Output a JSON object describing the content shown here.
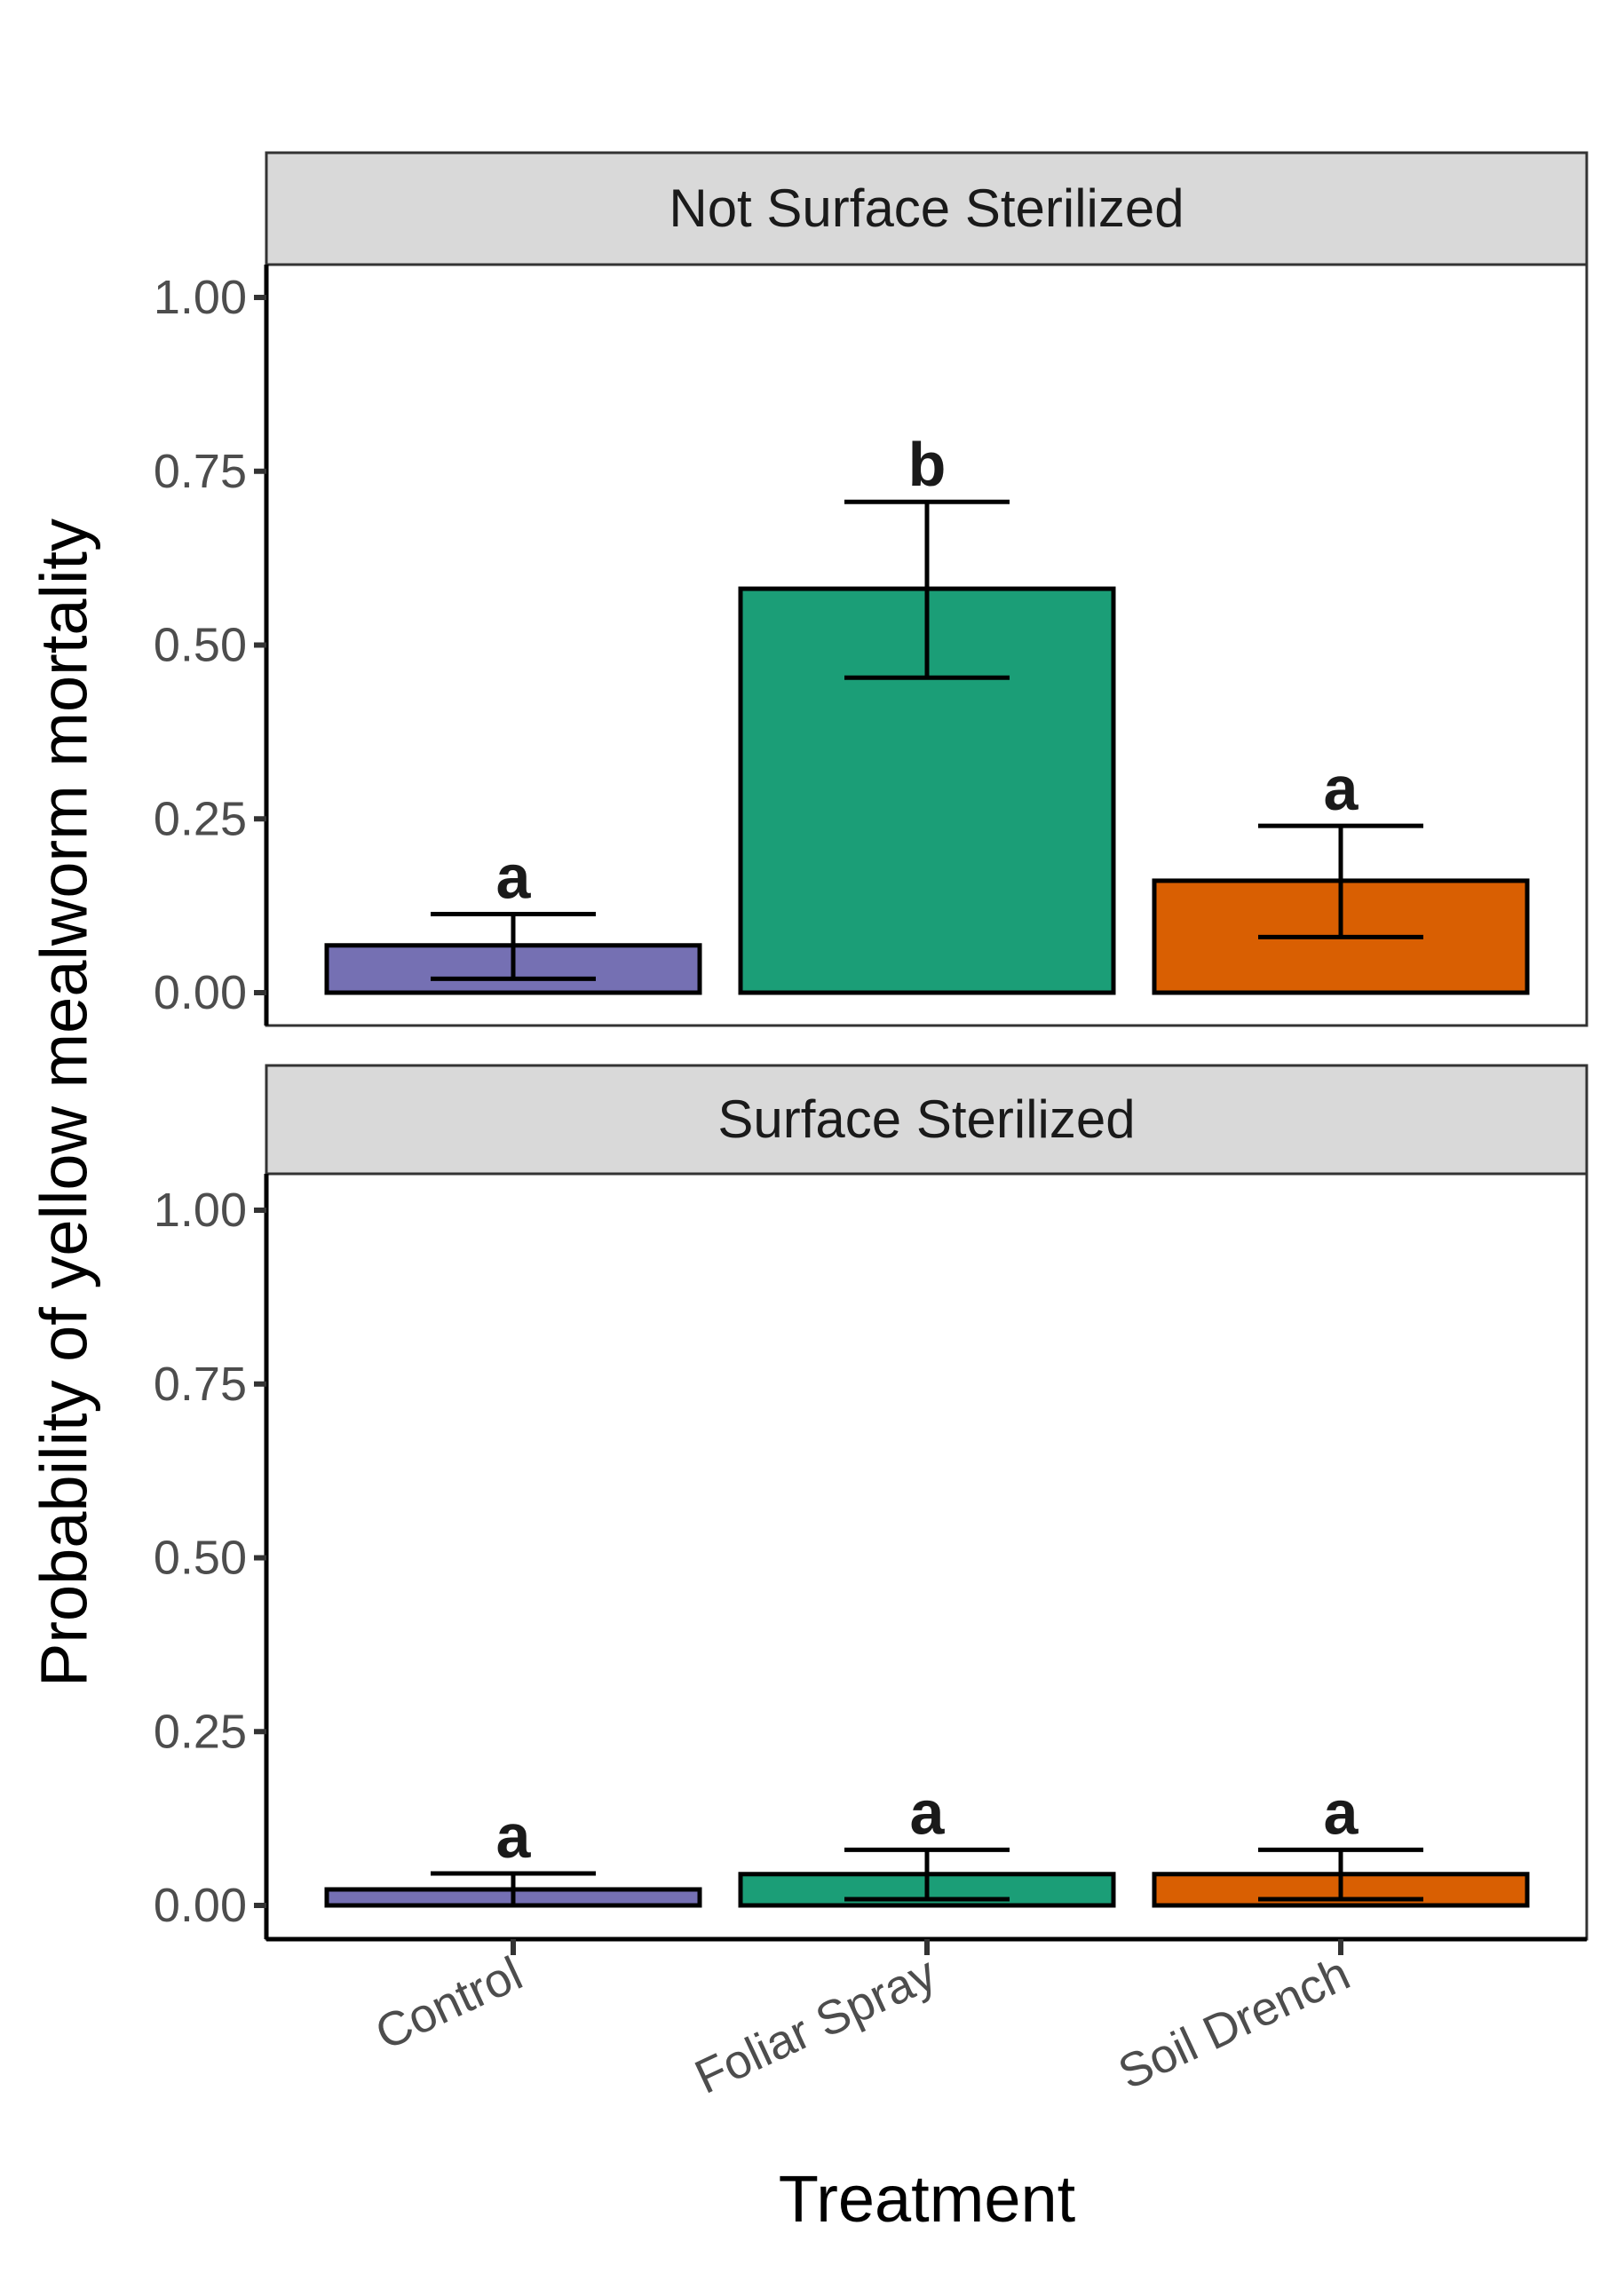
{
  "chart_data": {
    "type": "bar",
    "xlabel": "Treatment",
    "ylabel": "Probability of  yellow mealworm mortality",
    "categories": [
      "Control",
      "Foliar Spray",
      "Soil Drench"
    ],
    "colors": {
      "Control": "#7570b3",
      "Foliar Spray": "#1b9e77",
      "Soil Drench": "#d95f02"
    },
    "ylim": [
      0,
      1.05
    ],
    "yticks": [
      0.0,
      0.25,
      0.5,
      0.75,
      1.0
    ],
    "ytick_labels": [
      "0.00",
      "0.25",
      "0.50",
      "0.75",
      "1.00"
    ],
    "grid": false,
    "facets": [
      {
        "title": "Not Surface Sterilized",
        "values": [
          0.068,
          0.581,
          0.161
        ],
        "error_lower": [
          0.02,
          0.453,
          0.08
        ],
        "error_upper": [
          0.113,
          0.706,
          0.24
        ],
        "significance_letters": [
          "a",
          "b",
          "a"
        ]
      },
      {
        "title": "Surface Sterilized",
        "values": [
          0.023,
          0.045,
          0.045
        ],
        "error_lower": [
          0.0,
          0.009,
          0.009
        ],
        "error_upper": [
          0.046,
          0.08,
          0.08
        ],
        "significance_letters": [
          "a",
          "a",
          "a"
        ]
      }
    ]
  }
}
